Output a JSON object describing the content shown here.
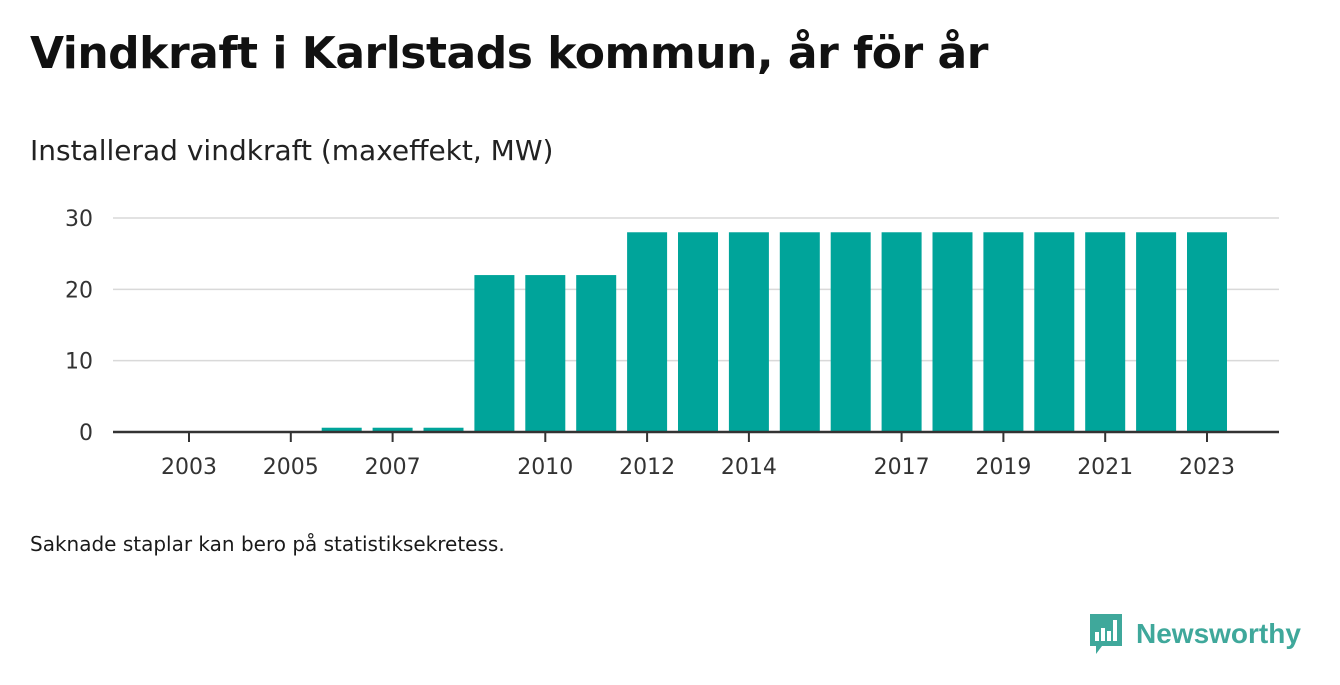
{
  "title": "Vindkraft i Karlstads kommun, år för år",
  "subtitle": "Installerad vindkraft (maxeffekt, MW)",
  "footnote": "Saknade staplar kan bero på statistiksekretess.",
  "brand": {
    "name": "Newsworthy",
    "logo_icon": "newsworthy-logo-icon",
    "color": "#3fa89b"
  },
  "chart_data": {
    "type": "bar",
    "categories": [
      "2003",
      "2004",
      "2005",
      "2006",
      "2007",
      "2008",
      "2009",
      "2010",
      "2011",
      "2012",
      "2013",
      "2014",
      "2015",
      "2016",
      "2017",
      "2018",
      "2019",
      "2020",
      "2021",
      "2022",
      "2023"
    ],
    "values": [
      0,
      0,
      0,
      0.6,
      0.6,
      0.6,
      22,
      22,
      22,
      28,
      28,
      28,
      28,
      28,
      28,
      28,
      28,
      28,
      28,
      28,
      28
    ],
    "x_tick_labels": [
      "2003",
      "2005",
      "2007",
      "2010",
      "2012",
      "2014",
      "2017",
      "2019",
      "2021",
      "2023"
    ],
    "y_ticks": [
      0,
      10,
      20,
      30
    ],
    "ylim": [
      0,
      30
    ],
    "title": "Vindkraft i Karlstads kommun, år för år",
    "subtitle": "Installerad vindkraft (maxeffekt, MW)",
    "xlabel": "",
    "ylabel": "",
    "grid": true,
    "bar_color": "#00a49a"
  }
}
